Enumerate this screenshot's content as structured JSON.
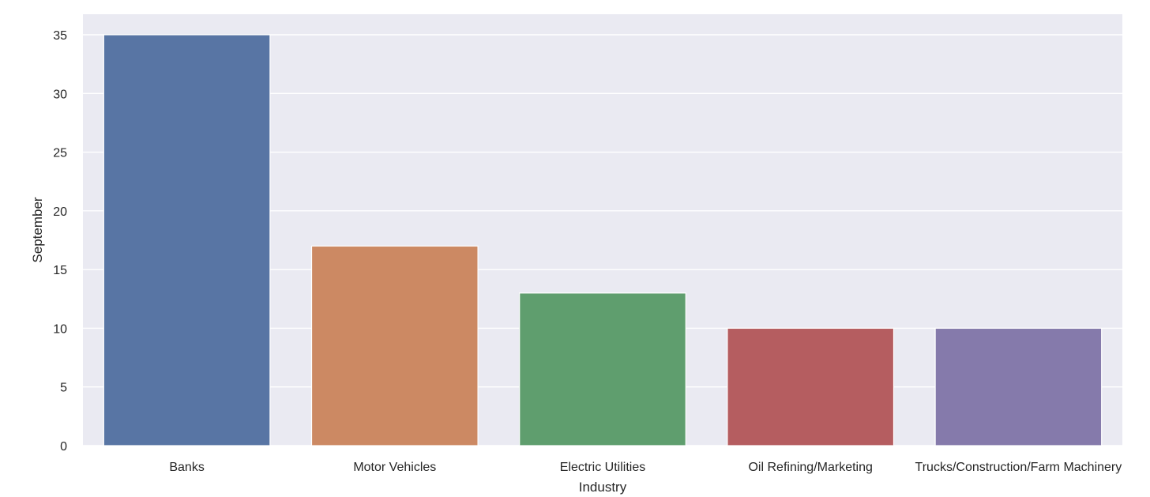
{
  "chart_data": {
    "type": "bar",
    "title": "",
    "xlabel": "Industry",
    "ylabel": "September",
    "categories": [
      "Banks",
      "Motor Vehicles",
      "Electric Utilities",
      "Oil Refining/Marketing",
      "Trucks/Construction/Farm Machinery"
    ],
    "values": [
      35,
      17,
      13,
      10,
      10
    ],
    "colors": [
      "#5875a4",
      "#cc8963",
      "#5f9e6e",
      "#b55d60",
      "#857aab"
    ],
    "ylim": [
      0,
      36.75
    ],
    "yticks": [
      0,
      5,
      10,
      15,
      20,
      25,
      30,
      35
    ],
    "grid": true,
    "background": "#eaeaf2",
    "grid_color": "#ffffff",
    "legend": "none"
  }
}
